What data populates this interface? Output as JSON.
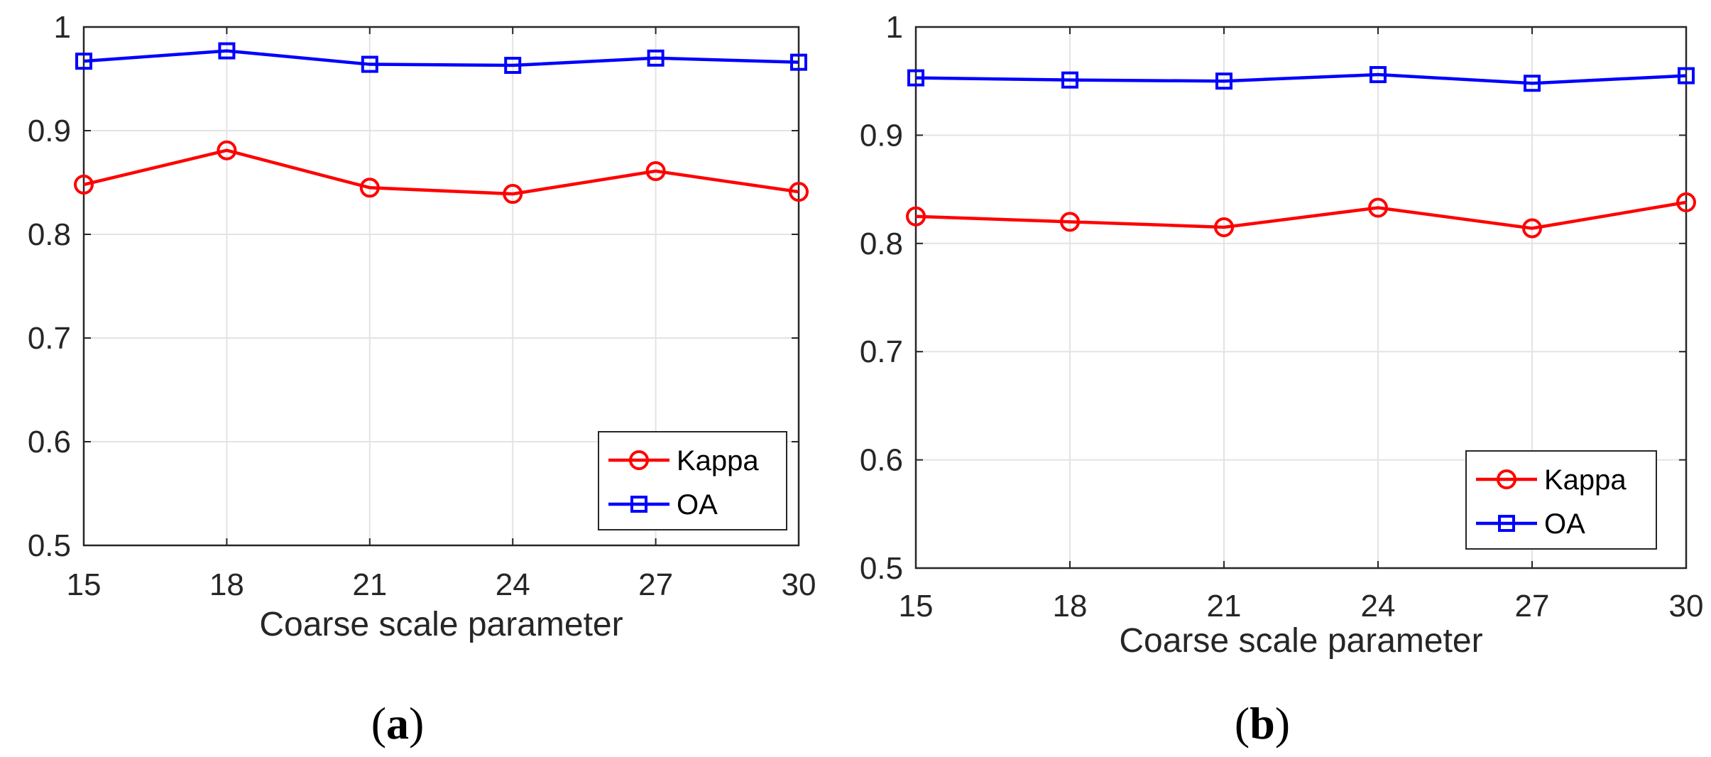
{
  "chart_data": [
    {
      "type": "line",
      "panel": "a",
      "caption_letter": "a",
      "x": [
        15,
        18,
        21,
        24,
        27,
        30
      ],
      "xlabel": "Coarse scale parameter",
      "ylabel": "",
      "xlim": [
        15,
        30
      ],
      "ylim": [
        0.5,
        1
      ],
      "x_ticks": [
        "15",
        "18",
        "21",
        "24",
        "27",
        "30"
      ],
      "y_ticks": [
        "0.5",
        "0.6",
        "0.7",
        "0.8",
        "0.9",
        "1"
      ],
      "grid": true,
      "legend_position": "bottom-right",
      "series": [
        {
          "name": "Kappa",
          "color": "#ff0000",
          "marker": "circle",
          "values": [
            0.848,
            0.881,
            0.845,
            0.839,
            0.861,
            0.841
          ]
        },
        {
          "name": "OA",
          "color": "#0000ff",
          "marker": "square",
          "values": [
            0.967,
            0.977,
            0.964,
            0.963,
            0.97,
            0.966
          ]
        }
      ]
    },
    {
      "type": "line",
      "panel": "b",
      "caption_letter": "b",
      "x": [
        15,
        18,
        21,
        24,
        27,
        30
      ],
      "xlabel": "Coarse scale parameter",
      "ylabel": "",
      "xlim": [
        15,
        30
      ],
      "ylim": [
        0.5,
        1
      ],
      "x_ticks": [
        "15",
        "18",
        "21",
        "24",
        "27",
        "30"
      ],
      "y_ticks": [
        "0.5",
        "0.6",
        "0.7",
        "0.8",
        "0.9",
        "1"
      ],
      "grid": true,
      "legend_position": "bottom-right",
      "series": [
        {
          "name": "Kappa",
          "color": "#ff0000",
          "marker": "circle",
          "values": [
            0.825,
            0.82,
            0.815,
            0.833,
            0.814,
            0.838
          ]
        },
        {
          "name": "OA",
          "color": "#0000ff",
          "marker": "square",
          "values": [
            0.953,
            0.951,
            0.95,
            0.956,
            0.948,
            0.955
          ]
        }
      ]
    }
  ]
}
